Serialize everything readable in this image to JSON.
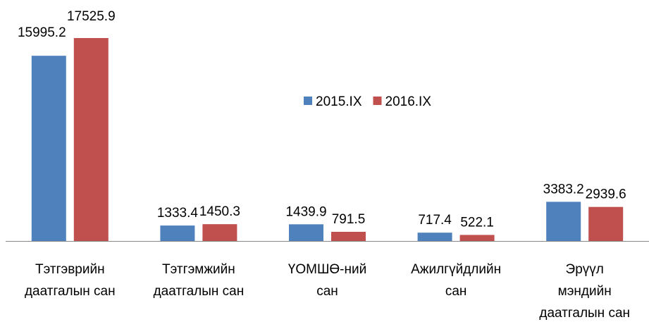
{
  "chart_data": {
    "type": "bar",
    "categories": [
      "Тэтгэврийн\nдаатгалын сан",
      "Тэтгэмжийн\nдаатгалын сан",
      "ҮОМШӨ-ний\nсан",
      "Ажилгүйдлийн\nсан",
      "Эрүүл\nмэндийн\nдаатгалын сан"
    ],
    "series": [
      {
        "name": "2015.IX",
        "color": "#4f81bd",
        "values": [
          15995.2,
          1333.4,
          1439.9,
          717.4,
          3383.2
        ]
      },
      {
        "name": "2016.IX",
        "color": "#c0504d",
        "values": [
          17525.9,
          1450.3,
          791.5,
          522.1,
          2939.6
        ]
      }
    ],
    "legend": "center"
  }
}
